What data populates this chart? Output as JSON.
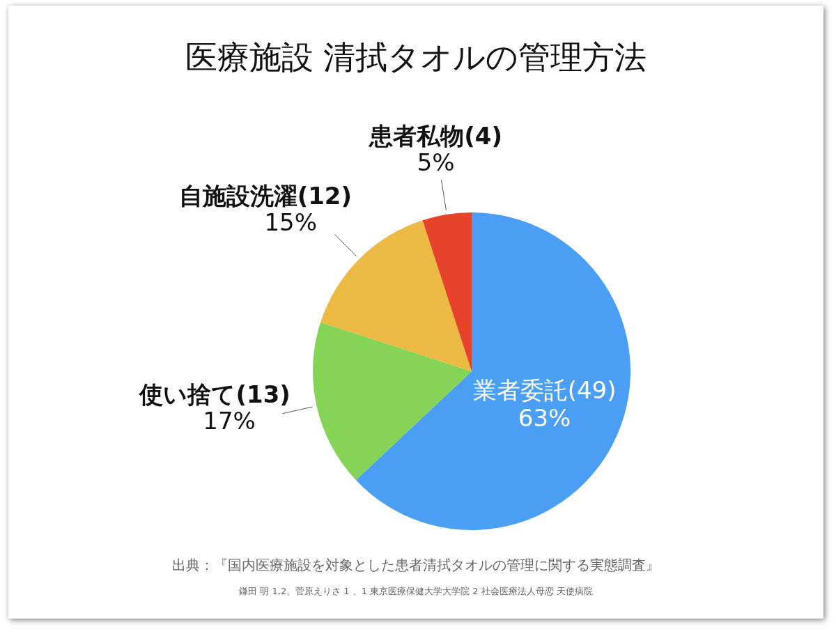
{
  "chart_data": {
    "type": "pie",
    "title": "医療施設 清拭タオルの管理方法",
    "categories": [
      "業者委託(49)",
      "使い捨て(13)",
      "自施設洗濯(12)",
      "患者私物(4)"
    ],
    "values": [
      63,
      17,
      15,
      5
    ],
    "value_labels": [
      "63%",
      "17%",
      "15%",
      "5%"
    ],
    "colors": [
      "#4a9ff5",
      "#86d457",
      "#ecb942",
      "#e7432a"
    ],
    "annotations": [
      "出典：『国内医療施設を対象とした患者清拭タオルの管理に関する実態調査』",
      "鎌田 明 1,2、菅原えりさ 1 、1 東京医療保健大学大学院 2 社会医療法人母恋 天使病院"
    ]
  }
}
